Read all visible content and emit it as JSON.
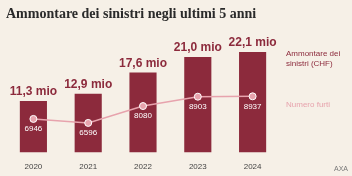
{
  "chart_data": {
    "type": "bar",
    "title": "Ammontare dei sinistri negli ultimi 5 anni",
    "categories": [
      "2020",
      "2021",
      "2022",
      "2023",
      "2024"
    ],
    "series": [
      {
        "name": "Ammontare dei sinistri (CHF)",
        "type": "bar",
        "color": "#8c2a3c",
        "values": [
          11.3,
          12.9,
          17.6,
          21.0,
          22.1
        ],
        "value_labels": [
          "11,3 mio",
          "12,9 mio",
          "17,6 mio",
          "21,0 mio",
          "22,1 mio"
        ]
      },
      {
        "name": "Numero furti",
        "type": "line",
        "axis": "y2",
        "color": "#e7a3ad",
        "marker": "circle",
        "values": [
          6946,
          6596,
          8080,
          8903,
          8937
        ]
      }
    ],
    "ylim": [
      0,
      25
    ],
    "y2lim": [
      4000,
      14000
    ],
    "grid": false,
    "legend": "right",
    "data_labels": true,
    "tick_labels": "x",
    "source": "AXA"
  }
}
